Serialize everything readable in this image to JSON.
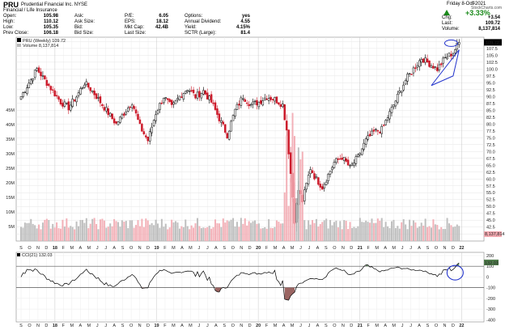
{
  "header": {
    "symbol": "PRU",
    "company": "Prudential Financial Inc.  NYSE",
    "sector": "Financial / Life Insurance",
    "watermark": "@ StockCharts.com",
    "date": "Friday  8-Oct-2021",
    "change_pct": "+3.33%",
    "up_color": "#1a8a1a",
    "col1": [
      [
        "Open:",
        "105.98"
      ],
      [
        "High:",
        "110.12"
      ],
      [
        "Low:",
        "105.35"
      ],
      [
        "Prev Close:",
        "106.18"
      ]
    ],
    "col2": [
      [
        "Ask:",
        ""
      ],
      [
        "Ask Size:",
        ""
      ],
      [
        "Bid:",
        ""
      ],
      [
        "Bid Size:",
        ""
      ]
    ],
    "col3": [
      [
        "P/E:",
        "6.05"
      ],
      [
        "EPS:",
        "18.12"
      ],
      [
        "Mkt Cap:",
        "42.4B"
      ],
      [
        "Last Size:",
        ""
      ]
    ],
    "col4": [
      [
        "Options:",
        "yes"
      ],
      [
        "Annual Dividend:",
        "4.55"
      ],
      [
        "Yield:",
        "4.15%"
      ],
      [
        "SCTR (Large):",
        "81.4"
      ]
    ],
    "col5": [
      [
        "Chg:",
        "+3.54"
      ],
      [
        "Last:",
        "109.72"
      ],
      [
        "Volume:",
        "8,137,814"
      ]
    ]
  },
  "chart_data": [
    {
      "type": "candlestick",
      "legend": [
        "PRU (Weekly) 109.72",
        "Volume 8,137,814"
      ],
      "price_ticks": [
        110.0,
        107.5,
        105.0,
        102.5,
        100.0,
        97.5,
        95.0,
        92.5,
        90.0,
        87.5,
        85.0,
        82.5,
        80.0,
        77.5,
        75.0,
        72.5,
        70.0,
        67.5,
        65.0,
        62.5,
        60.0,
        57.5,
        55.0,
        52.5,
        50.0,
        47.5,
        45.0,
        42.5,
        40.0
      ],
      "last_price_label": "109.72",
      "volume_ticks": [
        "5M",
        "10M",
        "15M",
        "20M",
        "25M",
        "30M",
        "35M",
        "40M",
        "45M"
      ],
      "volume_label": "8,137,814",
      "x_months": [
        "S",
        "O",
        "N",
        "D",
        "18",
        "F",
        "M",
        "A",
        "M",
        "J",
        "J",
        "A",
        "S",
        "O",
        "N",
        "D",
        "19",
        "F",
        "M",
        "A",
        "M",
        "J",
        "J",
        "A",
        "S",
        "O",
        "N",
        "D",
        "20",
        "F",
        "M",
        "A",
        "M",
        "J",
        "J",
        "A",
        "S",
        "O",
        "N",
        "D",
        "21",
        "F",
        "M",
        "A",
        "M",
        "J",
        "J",
        "A",
        "S",
        "O",
        "N",
        "D",
        "22"
      ],
      "anchors": [
        [
          0,
          90
        ],
        [
          4,
          95
        ],
        [
          8,
          100
        ],
        [
          12,
          96
        ],
        [
          16,
          92
        ],
        [
          20,
          88
        ],
        [
          24,
          86
        ],
        [
          28,
          90
        ],
        [
          32,
          95
        ],
        [
          36,
          92
        ],
        [
          40,
          88
        ],
        [
          44,
          84
        ],
        [
          48,
          80
        ],
        [
          52,
          84
        ],
        [
          56,
          88
        ],
        [
          60,
          79
        ],
        [
          64,
          74
        ],
        [
          68,
          84
        ],
        [
          72,
          90
        ],
        [
          76,
          86
        ],
        [
          80,
          90
        ],
        [
          84,
          93
        ],
        [
          88,
          90
        ],
        [
          92,
          92
        ],
        [
          96,
          88
        ],
        [
          100,
          82
        ],
        [
          104,
          76
        ],
        [
          108,
          85
        ],
        [
          112,
          90
        ],
        [
          116,
          87
        ],
        [
          120,
          88
        ],
        [
          124,
          90
        ],
        [
          128,
          89
        ],
        [
          132,
          87
        ],
        [
          134,
          78
        ],
        [
          136,
          62
        ],
        [
          138,
          45
        ],
        [
          140,
          56
        ],
        [
          142,
          52
        ],
        [
          144,
          58
        ],
        [
          146,
          64
        ],
        [
          148,
          61
        ],
        [
          150,
          59
        ],
        [
          152,
          57
        ],
        [
          154,
          60
        ],
        [
          158,
          66
        ],
        [
          162,
          68
        ],
        [
          166,
          64
        ],
        [
          170,
          68
        ],
        [
          174,
          74
        ],
        [
          178,
          77
        ],
        [
          182,
          78
        ],
        [
          186,
          84
        ],
        [
          190,
          90
        ],
        [
          194,
          96
        ],
        [
          198,
          100
        ],
        [
          202,
          104
        ],
        [
          206,
          102
        ],
        [
          210,
          100
        ],
        [
          214,
          104
        ],
        [
          218,
          106
        ],
        [
          221,
          109.72
        ]
      ]
    },
    {
      "type": "line",
      "legend": "CCI(21) 132.03",
      "last_value": "132.03",
      "y_ticks": [
        200,
        100,
        0,
        -100,
        -200,
        -300,
        -400
      ],
      "ylim": [
        -420,
        230
      ],
      "ref_lines": [
        100,
        -100
      ],
      "x_months": [
        "S",
        "O",
        "N",
        "D",
        "18",
        "F",
        "M",
        "A",
        "M",
        "J",
        "J",
        "A",
        "S",
        "O",
        "N",
        "D",
        "19",
        "F",
        "M",
        "A",
        "M",
        "J",
        "J",
        "A",
        "S",
        "O",
        "N",
        "D",
        "20",
        "F",
        "M",
        "A",
        "M",
        "J",
        "J",
        "A",
        "S",
        "O",
        "N",
        "D",
        "21",
        "F",
        "M",
        "A",
        "M",
        "J",
        "J",
        "A",
        "S",
        "O",
        "N",
        "D",
        "22"
      ]
    }
  ]
}
